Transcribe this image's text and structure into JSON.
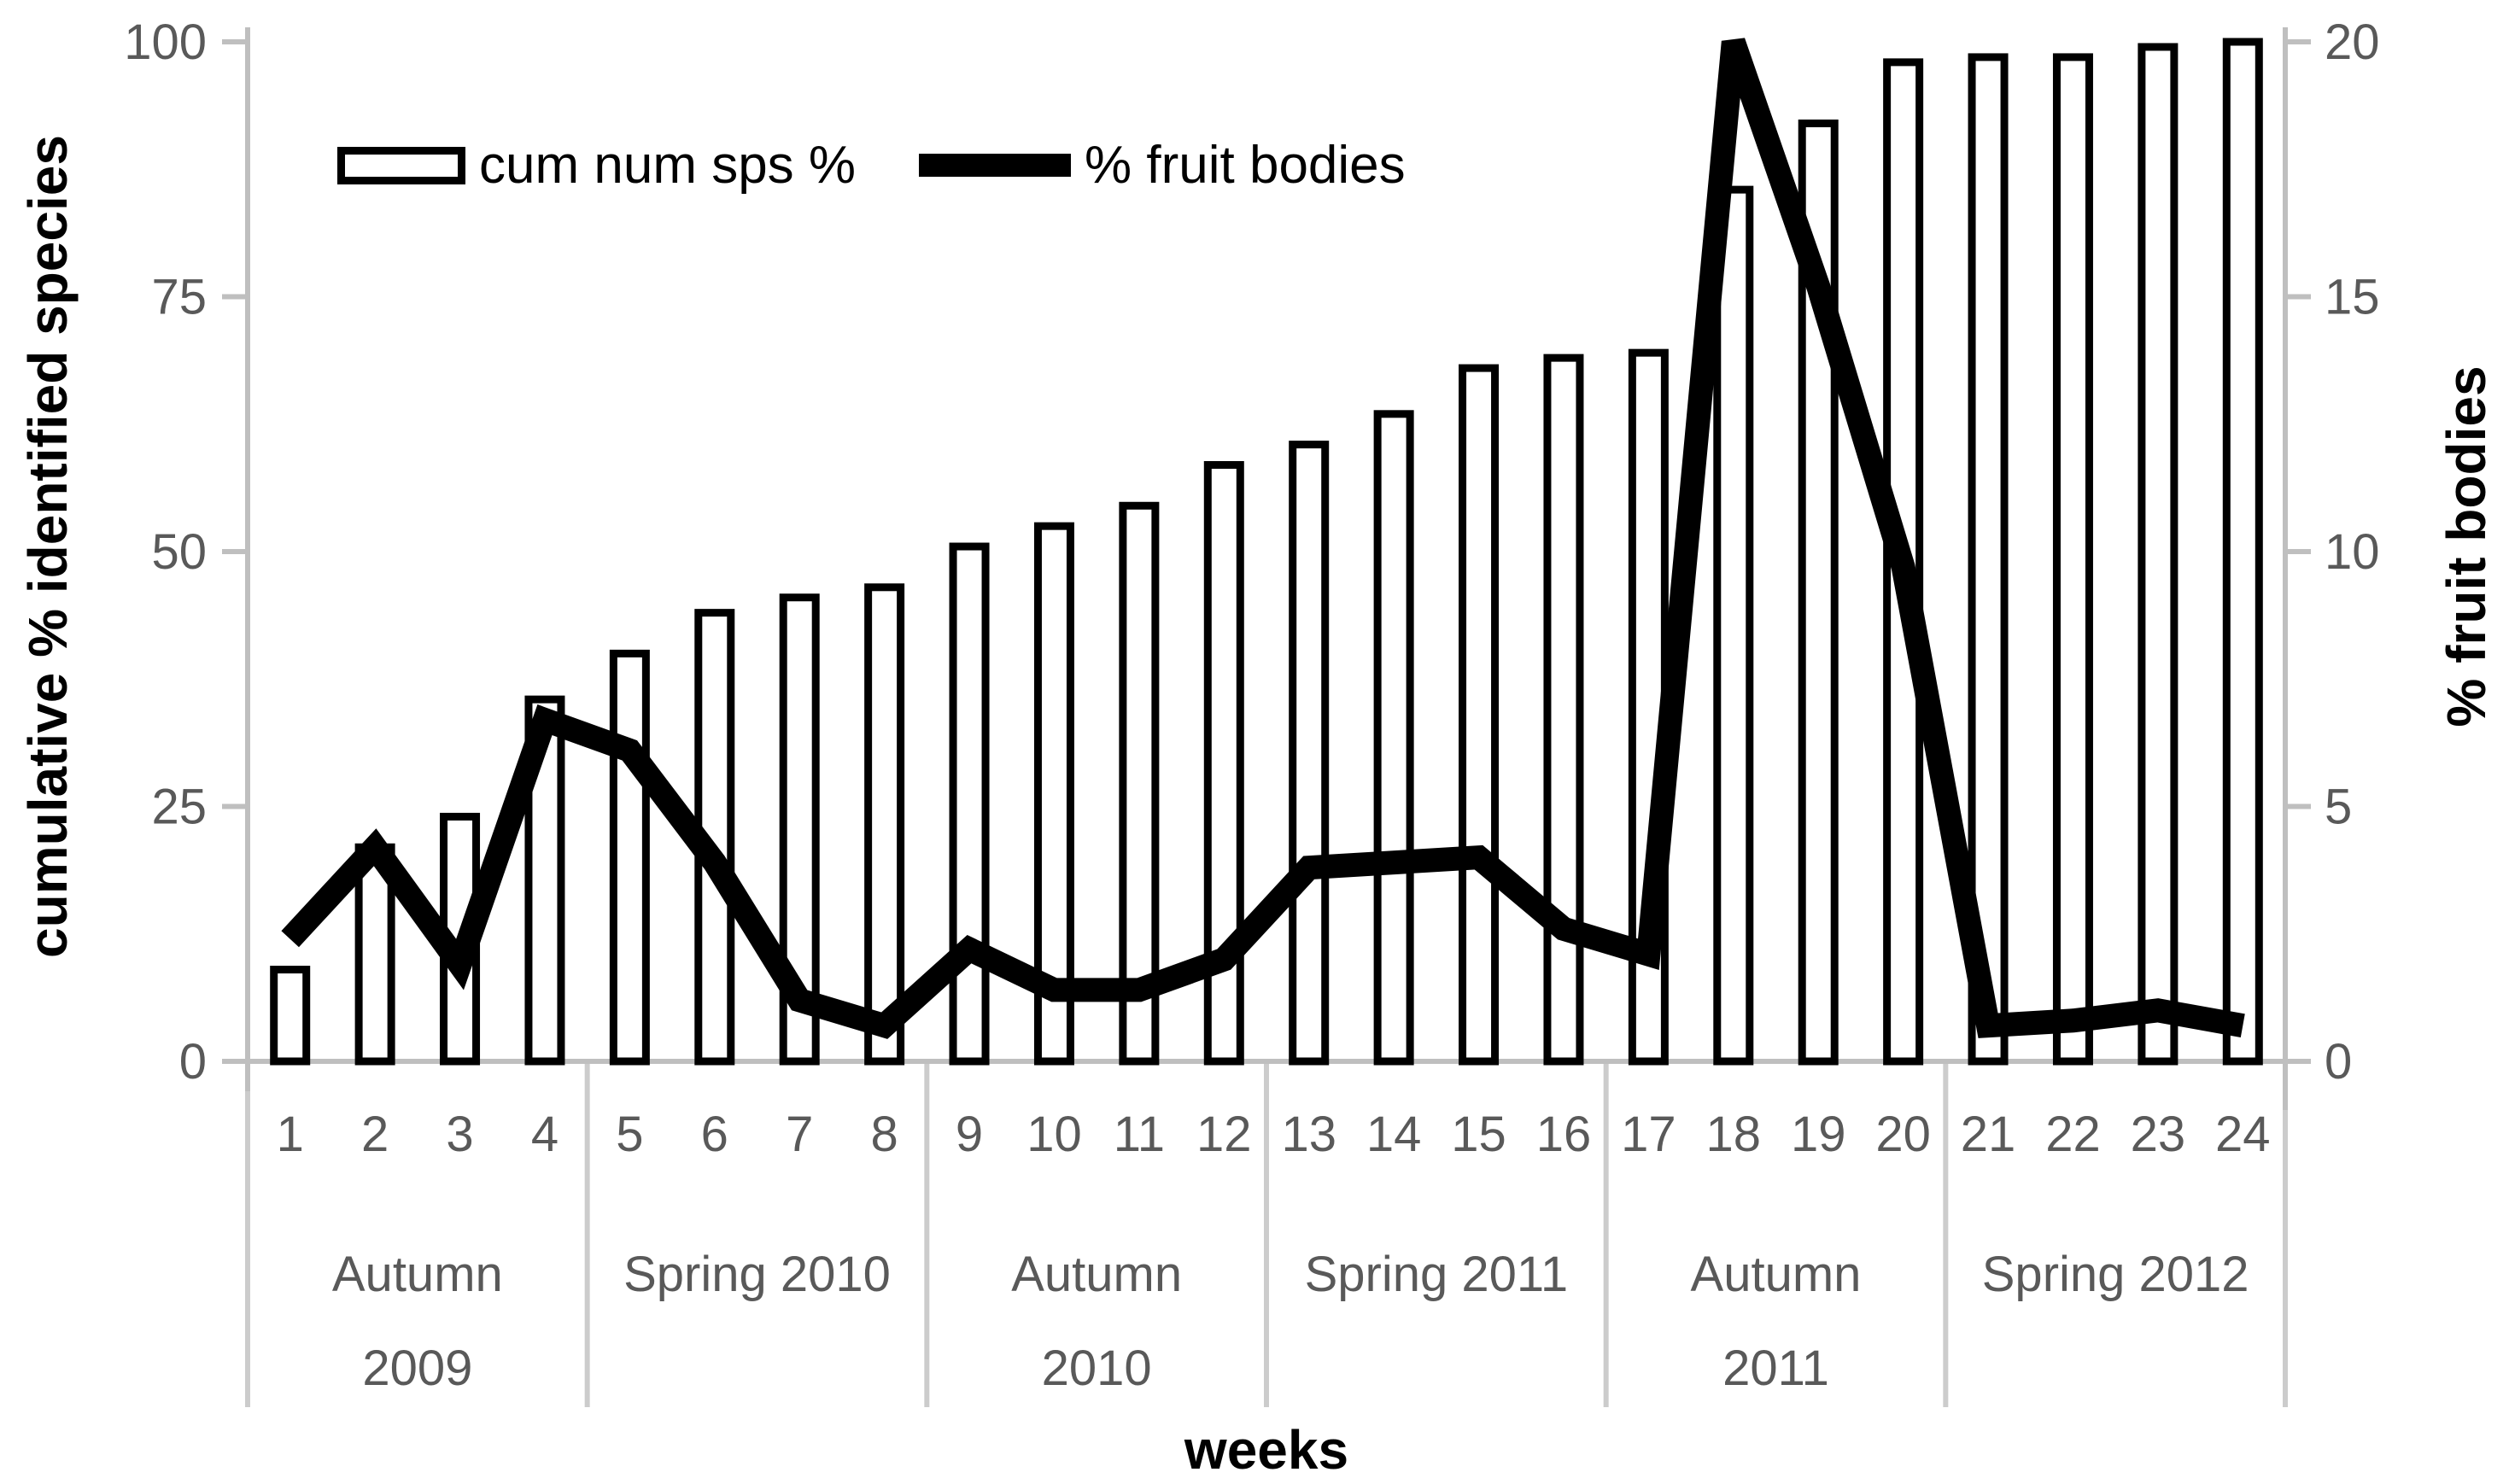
{
  "legend": {
    "items": [
      {
        "label": "cum num sps %",
        "marker": "bar-swatch"
      },
      {
        "label": "% fruit bodies",
        "marker": "line-swatch"
      }
    ]
  },
  "axes": {
    "left": {
      "title": "cumulative % identified species",
      "ticks": [
        0,
        25,
        50,
        75,
        100
      ]
    },
    "right": {
      "title": "% fruit bodies",
      "ticks": [
        0,
        5,
        10,
        15,
        20
      ]
    },
    "x": {
      "title": "weeks",
      "week_labels": [
        "1",
        "2",
        "3",
        "4",
        "5",
        "6",
        "7",
        "8",
        "9",
        "10",
        "11",
        "12",
        "13",
        "14",
        "15",
        "16",
        "17",
        "18",
        "19",
        "20",
        "21",
        "22",
        "23",
        "24"
      ],
      "season_groups": [
        {
          "line1": "Autumn",
          "line2": "2009"
        },
        {
          "line1": "Spring 2010",
          "line2": ""
        },
        {
          "line1": "Autumn",
          "line2": "2010"
        },
        {
          "line1": "Spring 2011",
          "line2": ""
        },
        {
          "line1": "Autumn",
          "line2": "2011"
        },
        {
          "line1": "Spring 2012",
          "line2": ""
        }
      ]
    }
  },
  "chart_data": {
    "type": "bar+line",
    "categories": [
      1,
      2,
      3,
      4,
      5,
      6,
      7,
      8,
      9,
      10,
      11,
      12,
      13,
      14,
      15,
      16,
      17,
      18,
      19,
      20,
      21,
      22,
      23,
      24
    ],
    "series": [
      {
        "name": "cum num sps %",
        "type": "bar",
        "axis": "left",
        "values": [
          9,
          21,
          24,
          35.5,
          40,
          44,
          45.5,
          46.5,
          50.5,
          52.5,
          54.5,
          58.5,
          60.5,
          63.5,
          68,
          69,
          69.5,
          85.5,
          92,
          98,
          98.5,
          98.5,
          99.5,
          100
        ]
      },
      {
        "name": "% fruit bodies",
        "type": "line",
        "axis": "right",
        "values": [
          2.4,
          4.2,
          1.9,
          6.7,
          6.1,
          3.9,
          1.2,
          0.7,
          2.2,
          1.4,
          1.4,
          2.0,
          3.8,
          3.9,
          4.0,
          2.6,
          2.1,
          20,
          15.2,
          9.7,
          0.7,
          0.8,
          1.0,
          0.7
        ]
      }
    ],
    "title": "",
    "xlabel": "weeks",
    "ylabel_left": "cumulative % identified species",
    "ylabel_right": "% fruit bodies",
    "ylim_left": [
      0,
      100
    ],
    "ylim_right": [
      0,
      20
    ],
    "grid": false,
    "legend_position": "top"
  },
  "colors": {
    "axis": "#BFBFBF",
    "separator": "#CCCCCC",
    "tick_text": "#595959",
    "bar_fill": "#FFFFFF",
    "bar_stroke": "#000000",
    "line": "#000000",
    "text": "#000000",
    "background": "#FFFFFF"
  }
}
